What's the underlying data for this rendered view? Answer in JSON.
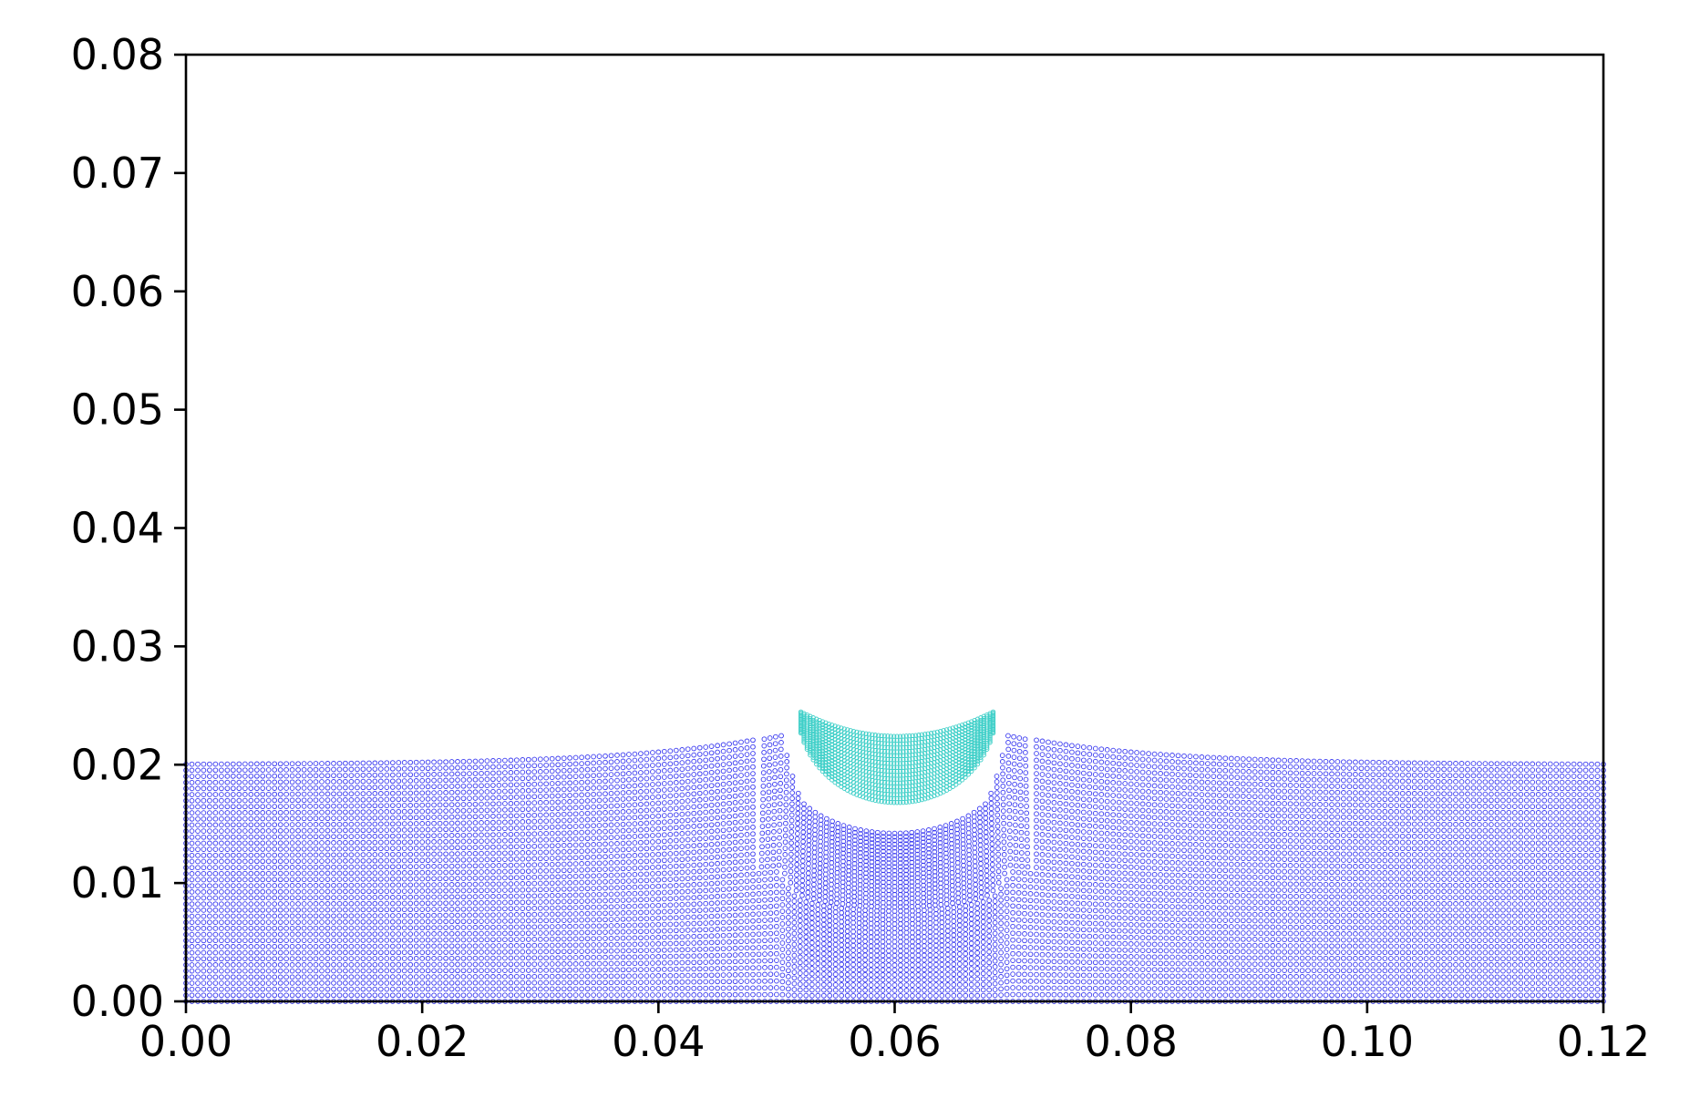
{
  "chart_data": {
    "type": "scatter",
    "title": "",
    "xlabel": "",
    "ylabel": "",
    "xlim": [
      0.0,
      0.12
    ],
    "ylim": [
      0.0,
      0.08
    ],
    "x_ticks": [
      "0.00",
      "0.02",
      "0.04",
      "0.06",
      "0.08",
      "0.10",
      "0.12"
    ],
    "y_ticks": [
      "0.00",
      "0.01",
      "0.02",
      "0.03",
      "0.04",
      "0.05",
      "0.06",
      "0.07",
      "0.08"
    ],
    "grid": false,
    "legend": "none",
    "series": [
      {
        "color": "#3a3af0",
        "marker": "open-circle",
        "description_points": "fluid particle layers",
        "x_range": [
          0.0,
          0.12
        ],
        "base_top": 0.02,
        "layers": 40,
        "columns": 240,
        "cavity": {
          "center_x": 0.06,
          "bottom_y": 0.0142,
          "width": 0.0195
        },
        "rim_peak": {
          "left_x": 0.049,
          "right_x": 0.071,
          "height": 0.0225
        }
      },
      {
        "color": "#3ecfc8",
        "marker": "open-circle",
        "body_shape": "half-disc",
        "center_x": 0.0602,
        "top_y": 0.0246,
        "bottom_y": 0.0168,
        "half_width": 0.0084
      }
    ]
  }
}
